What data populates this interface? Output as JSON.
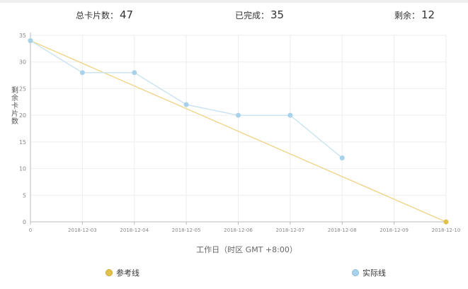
{
  "summary": {
    "total_label": "总卡片数：",
    "total_value": "47",
    "done_label": "已完成：",
    "done_value": "35",
    "remaining_label": "剩余：",
    "remaining_value": "12"
  },
  "chart_data": {
    "type": "line",
    "xlabel": "工作日（时区 GMT +8:00）",
    "ylabel": "剩余卡片数",
    "categories": [
      "0",
      "2018-12-03",
      "2018-12-04",
      "2018-12-05",
      "2018-12-06",
      "2018-12-07",
      "2018-12-08",
      "2018-12-09",
      "2018-12-10"
    ],
    "yticks": [
      "0",
      "5",
      "10",
      "15",
      "20",
      "25",
      "30",
      "35"
    ],
    "ylim": [
      0,
      35
    ],
    "grid": true,
    "legend_position": "bottom",
    "series": [
      {
        "name": "参考线",
        "color": "#f0d48a",
        "marker_color": "#e3c24a",
        "values": [
          34,
          null,
          null,
          null,
          null,
          null,
          null,
          null,
          0
        ]
      },
      {
        "name": "实际线",
        "color": "#c8e2f0",
        "marker_color": "#a8d2ea",
        "values": [
          34,
          28,
          28,
          22,
          20,
          20,
          12,
          null,
          null
        ]
      }
    ]
  }
}
